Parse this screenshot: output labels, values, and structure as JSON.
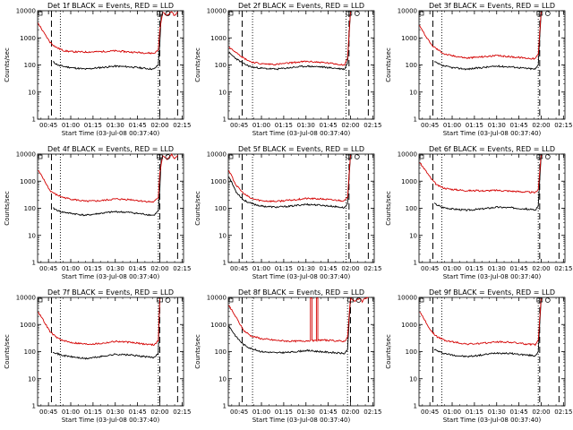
{
  "chart_data": [
    {
      "type": "line",
      "title": "Det 1f BLACK = Events, RED = LLD",
      "xlabel": "Start Time (03-Jul-08 00:37:40)",
      "ylabel": "Counts/sec",
      "yscale": "log",
      "ylim": [
        1,
        10000
      ],
      "x_tick_labels": [
        "00:45",
        "01:00",
        "01:15",
        "01:30",
        "01:45",
        "02:00",
        "02:15"
      ],
      "dashed_lines": [
        "00:47",
        "02:00",
        "02:12"
      ],
      "dotted_lines": [
        "00:53",
        "01:59"
      ],
      "series": [
        {
          "name": "Events",
          "color": "#000000",
          "start": "00:48",
          "x": [
            "00:48",
            "00:52",
            "01:00",
            "01:10",
            "01:20",
            "01:30",
            "01:40",
            "01:50",
            "01:56",
            "01:59",
            "02:00",
            "02:01"
          ],
          "values": [
            130,
            95,
            80,
            70,
            80,
            90,
            85,
            75,
            70,
            100,
            600,
            8000
          ]
        },
        {
          "name": "LLD",
          "color": "#d40000",
          "start": "00:38",
          "x": [
            "00:38",
            "00:42",
            "00:46",
            "00:50",
            "00:55",
            "01:00",
            "01:10",
            "01:20",
            "01:30",
            "01:40",
            "01:50",
            "01:56",
            "01:59",
            "02:00",
            "02:02",
            "02:05",
            "02:08",
            "02:10",
            "02:12"
          ],
          "values": [
            3500,
            1500,
            700,
            450,
            340,
            310,
            300,
            310,
            330,
            300,
            280,
            270,
            350,
            2000,
            9000,
            6500,
            9500,
            6500,
            9000
          ]
        }
      ]
    },
    {
      "type": "line",
      "title": "Det 2f BLACK = Events, RED = LLD",
      "xlabel": "Start Time (03-Jul-08 00:37:40)",
      "ylabel": "Counts/sec",
      "yscale": "log",
      "ylim": [
        1,
        10000
      ],
      "x_tick_labels": [
        "00:45",
        "01:00",
        "01:15",
        "01:30",
        "01:45",
        "02:00",
        "02:15"
      ],
      "dashed_lines": [
        "00:47",
        "01:59",
        "02:12"
      ],
      "dotted_lines": [
        "00:54",
        "01:57"
      ],
      "series": [
        {
          "name": "Events",
          "color": "#000000",
          "start": "00:38",
          "x": [
            "00:38",
            "00:43",
            "00:48",
            "00:53",
            "01:00",
            "01:10",
            "01:20",
            "01:30",
            "01:40",
            "01:50",
            "01:56",
            "01:58",
            "02:00"
          ],
          "values": [
            280,
            170,
            110,
            85,
            75,
            70,
            80,
            90,
            85,
            75,
            70,
            120,
            9000
          ]
        },
        {
          "name": "LLD",
          "color": "#d40000",
          "start": "00:38",
          "x": [
            "00:38",
            "00:43",
            "00:48",
            "00:53",
            "01:00",
            "01:10",
            "01:20",
            "01:30",
            "01:40",
            "01:50",
            "01:56",
            "01:58",
            "02:00"
          ],
          "values": [
            450,
            300,
            180,
            130,
            110,
            105,
            120,
            135,
            125,
            110,
            100,
            180,
            9500
          ]
        }
      ]
    },
    {
      "type": "line",
      "title": "Det 3f BLACK = Events, RED = LLD",
      "xlabel": "Start Time (03-Jul-08 00:37:40)",
      "ylabel": "Counts/sec",
      "yscale": "log",
      "ylim": [
        1,
        10000
      ],
      "x_tick_labels": [
        "00:45",
        "01:00",
        "01:15",
        "01:30",
        "01:45",
        "02:00",
        "02:15"
      ],
      "dashed_lines": [
        "00:47",
        "01:59",
        "02:12"
      ],
      "dotted_lines": [
        "00:53",
        "01:58"
      ],
      "series": [
        {
          "name": "Events",
          "color": "#000000",
          "start": "00:48",
          "x": [
            "00:48",
            "00:53",
            "01:00",
            "01:10",
            "01:20",
            "01:30",
            "01:40",
            "01:50",
            "01:56",
            "01:58",
            "02:00"
          ],
          "values": [
            130,
            95,
            80,
            70,
            80,
            90,
            85,
            75,
            70,
            100,
            9000
          ]
        },
        {
          "name": "LLD",
          "color": "#d40000",
          "start": "00:38",
          "x": [
            "00:38",
            "00:42",
            "00:46",
            "00:50",
            "00:55",
            "01:00",
            "01:10",
            "01:20",
            "01:30",
            "01:40",
            "01:50",
            "01:56",
            "01:58",
            "02:00"
          ],
          "values": [
            3000,
            1200,
            550,
            380,
            250,
            220,
            180,
            200,
            220,
            200,
            180,
            170,
            250,
            9500
          ]
        }
      ]
    },
    {
      "type": "line",
      "title": "Det 4f BLACK = Events, RED = LLD",
      "xlabel": "Start Time (03-Jul-08 00:37:40)",
      "ylabel": "Counts/sec",
      "yscale": "log",
      "ylim": [
        1,
        10000
      ],
      "x_tick_labels": [
        "00:45",
        "01:00",
        "01:15",
        "01:30",
        "01:45",
        "02:00",
        "02:15"
      ],
      "dashed_lines": [
        "00:47",
        "02:00",
        "02:12"
      ],
      "dotted_lines": [
        "00:53",
        "01:59"
      ],
      "series": [
        {
          "name": "Events",
          "color": "#000000",
          "start": "00:48",
          "x": [
            "00:48",
            "00:53",
            "01:00",
            "01:10",
            "01:20",
            "01:30",
            "01:40",
            "01:50",
            "01:56",
            "01:59",
            "02:00",
            "02:01"
          ],
          "values": [
            100,
            75,
            65,
            55,
            65,
            75,
            70,
            60,
            55,
            80,
            500,
            8000
          ]
        },
        {
          "name": "LLD",
          "color": "#d40000",
          "start": "00:38",
          "x": [
            "00:38",
            "00:42",
            "00:46",
            "00:50",
            "00:55",
            "01:00",
            "01:10",
            "01:20",
            "01:30",
            "01:40",
            "01:50",
            "01:56",
            "01:59",
            "02:00",
            "02:02",
            "02:05",
            "02:08",
            "02:10",
            "02:12"
          ],
          "values": [
            2500,
            1100,
            450,
            320,
            250,
            220,
            180,
            190,
            220,
            210,
            180,
            170,
            250,
            2000,
            9000,
            6500,
            9500,
            6500,
            9000
          ]
        }
      ]
    },
    {
      "type": "line",
      "title": "Det 5f BLACK = Events, RED = LLD",
      "xlabel": "Start Time (03-Jul-08 00:37:40)",
      "ylabel": "Counts/sec",
      "yscale": "log",
      "ylim": [
        1,
        10000
      ],
      "x_tick_labels": [
        "00:45",
        "01:00",
        "01:15",
        "01:30",
        "01:45",
        "02:00",
        "02:15"
      ],
      "dashed_lines": [
        "00:47",
        "01:59",
        "02:12"
      ],
      "dotted_lines": [
        "00:54",
        "01:57"
      ],
      "series": [
        {
          "name": "Events",
          "color": "#000000",
          "start": "00:38",
          "x": [
            "00:38",
            "00:43",
            "00:48",
            "00:53",
            "01:00",
            "01:10",
            "01:20",
            "01:30",
            "01:40",
            "01:50",
            "01:56",
            "01:58",
            "02:00"
          ],
          "values": [
            1500,
            400,
            200,
            150,
            120,
            110,
            120,
            140,
            130,
            115,
            105,
            150,
            9000
          ]
        },
        {
          "name": "LLD",
          "color": "#d40000",
          "start": "00:38",
          "x": [
            "00:38",
            "00:43",
            "00:48",
            "00:53",
            "01:00",
            "01:10",
            "01:20",
            "01:30",
            "01:40",
            "01:50",
            "01:56",
            "01:58",
            "02:00"
          ],
          "values": [
            2500,
            700,
            350,
            230,
            190,
            180,
            200,
            230,
            220,
            200,
            190,
            250,
            9500
          ]
        }
      ]
    },
    {
      "type": "line",
      "title": "Det 6f BLACK = Events, RED = LLD",
      "xlabel": "Start Time (03-Jul-08 00:37:40)",
      "ylabel": "Counts/sec",
      "yscale": "log",
      "ylim": [
        1,
        10000
      ],
      "x_tick_labels": [
        "00:45",
        "01:00",
        "01:15",
        "01:30",
        "01:45",
        "02:00",
        "02:15"
      ],
      "dashed_lines": [
        "00:47",
        "01:59",
        "02:12"
      ],
      "dotted_lines": [
        "00:53",
        "01:58"
      ],
      "series": [
        {
          "name": "Events",
          "color": "#000000",
          "start": "00:48",
          "x": [
            "00:48",
            "00:53",
            "01:00",
            "01:10",
            "01:20",
            "01:30",
            "01:40",
            "01:50",
            "01:56",
            "01:58",
            "02:00"
          ],
          "values": [
            150,
            110,
            95,
            85,
            95,
            110,
            105,
            95,
            85,
            120,
            9000
          ]
        },
        {
          "name": "LLD",
          "color": "#d40000",
          "start": "00:38",
          "x": [
            "00:38",
            "00:42",
            "00:46",
            "00:50",
            "00:55",
            "01:00",
            "01:10",
            "01:20",
            "01:30",
            "01:40",
            "01:50",
            "01:56",
            "01:58",
            "02:00"
          ],
          "values": [
            5000,
            2500,
            1200,
            700,
            550,
            500,
            450,
            440,
            460,
            430,
            400,
            380,
            500,
            9500
          ]
        }
      ]
    },
    {
      "type": "line",
      "title": "Det 7f BLACK = Events, RED = LLD",
      "xlabel": "Start Time (03-Jul-08 00:37:40)",
      "ylabel": "Counts/sec",
      "yscale": "log",
      "ylim": [
        1,
        10000
      ],
      "x_tick_labels": [
        "00:45",
        "01:00",
        "01:15",
        "01:30",
        "01:45",
        "02:00",
        "02:15"
      ],
      "dashed_lines": [
        "00:47",
        "02:00",
        "02:12"
      ],
      "dotted_lines": [
        "00:53",
        "01:59"
      ],
      "series": [
        {
          "name": "Events",
          "color": "#000000",
          "start": "00:48",
          "x": [
            "00:48",
            "00:53",
            "01:00",
            "01:10",
            "01:20",
            "01:30",
            "01:40",
            "01:50",
            "01:56",
            "01:59",
            "02:00"
          ],
          "values": [
            100,
            75,
            65,
            55,
            65,
            80,
            75,
            65,
            60,
            90,
            9000
          ]
        },
        {
          "name": "LLD",
          "color": "#d40000",
          "start": "00:38",
          "x": [
            "00:38",
            "00:42",
            "00:46",
            "00:50",
            "00:55",
            "01:00",
            "01:10",
            "01:20",
            "01:30",
            "01:40",
            "01:50",
            "01:56",
            "01:59",
            "02:00"
          ],
          "values": [
            3000,
            1300,
            550,
            350,
            250,
            220,
            190,
            200,
            240,
            220,
            190,
            180,
            250,
            9500
          ]
        }
      ]
    },
    {
      "type": "line",
      "title": "Det 8f BLACK = Events, RED = LLD",
      "xlabel": "Start Time (03-Jul-08 00:37:40)",
      "ylabel": "Counts/sec",
      "yscale": "log",
      "ylim": [
        1,
        10000
      ],
      "x_tick_labels": [
        "00:45",
        "01:00",
        "01:15",
        "01:30",
        "01:45",
        "02:00",
        "02:15"
      ],
      "dashed_lines": [
        "00:47",
        "02:00",
        "02:12"
      ],
      "dotted_lines": [
        "00:54",
        "01:58"
      ],
      "series": [
        {
          "name": "Events",
          "color": "#000000",
          "start": "00:38",
          "x": [
            "00:38",
            "00:43",
            "00:48",
            "00:53",
            "01:00",
            "01:10",
            "01:20",
            "01:30",
            "01:40",
            "01:50",
            "01:56",
            "01:58",
            "02:00"
          ],
          "values": [
            900,
            350,
            180,
            130,
            100,
            90,
            95,
            110,
            100,
            90,
            85,
            120,
            9000
          ]
        },
        {
          "name": "LLD",
          "color": "#d40000",
          "start": "00:38",
          "x": [
            "00:38",
            "00:43",
            "00:48",
            "00:53",
            "01:00",
            "01:10",
            "01:20",
            "01:30",
            "01:33",
            "01:33",
            "01:34",
            "01:34",
            "01:37",
            "01:37",
            "01:38",
            "01:38",
            "01:40",
            "01:50",
            "01:56",
            "01:58",
            "02:00",
            "02:03",
            "02:06",
            "02:08",
            "02:10",
            "02:12"
          ],
          "values": [
            5000,
            1800,
            600,
            380,
            300,
            260,
            240,
            250,
            260,
            9500,
            9500,
            250,
            250,
            9500,
            9500,
            260,
            270,
            250,
            240,
            350,
            9500,
            7000,
            9500,
            7000,
            9500,
            9500
          ]
        }
      ]
    },
    {
      "type": "line",
      "title": "Det 9f BLACK = Events, RED = LLD",
      "xlabel": "Start Time (03-Jul-08 00:37:40)",
      "ylabel": "Counts/sec",
      "yscale": "log",
      "ylim": [
        1,
        10000
      ],
      "x_tick_labels": [
        "00:45",
        "01:00",
        "01:15",
        "01:30",
        "01:45",
        "02:00",
        "02:15"
      ],
      "dashed_lines": [
        "00:47",
        "01:59",
        "02:12"
      ],
      "dotted_lines": [
        "00:53",
        "01:58"
      ],
      "series": [
        {
          "name": "Events",
          "color": "#000000",
          "start": "00:48",
          "x": [
            "00:48",
            "00:53",
            "01:00",
            "01:10",
            "01:20",
            "01:30",
            "01:40",
            "01:50",
            "01:56",
            "01:58",
            "02:00"
          ],
          "values": [
            120,
            90,
            75,
            65,
            75,
            90,
            85,
            75,
            70,
            100,
            9000
          ]
        },
        {
          "name": "LLD",
          "color": "#d40000",
          "start": "00:38",
          "x": [
            "00:38",
            "00:42",
            "00:46",
            "00:50",
            "00:55",
            "01:00",
            "01:10",
            "01:20",
            "01:30",
            "01:40",
            "01:50",
            "01:56",
            "01:58",
            "02:00"
          ],
          "values": [
            3000,
            1300,
            550,
            350,
            260,
            230,
            190,
            200,
            230,
            220,
            190,
            180,
            260,
            9500
          ]
        }
      ]
    }
  ]
}
